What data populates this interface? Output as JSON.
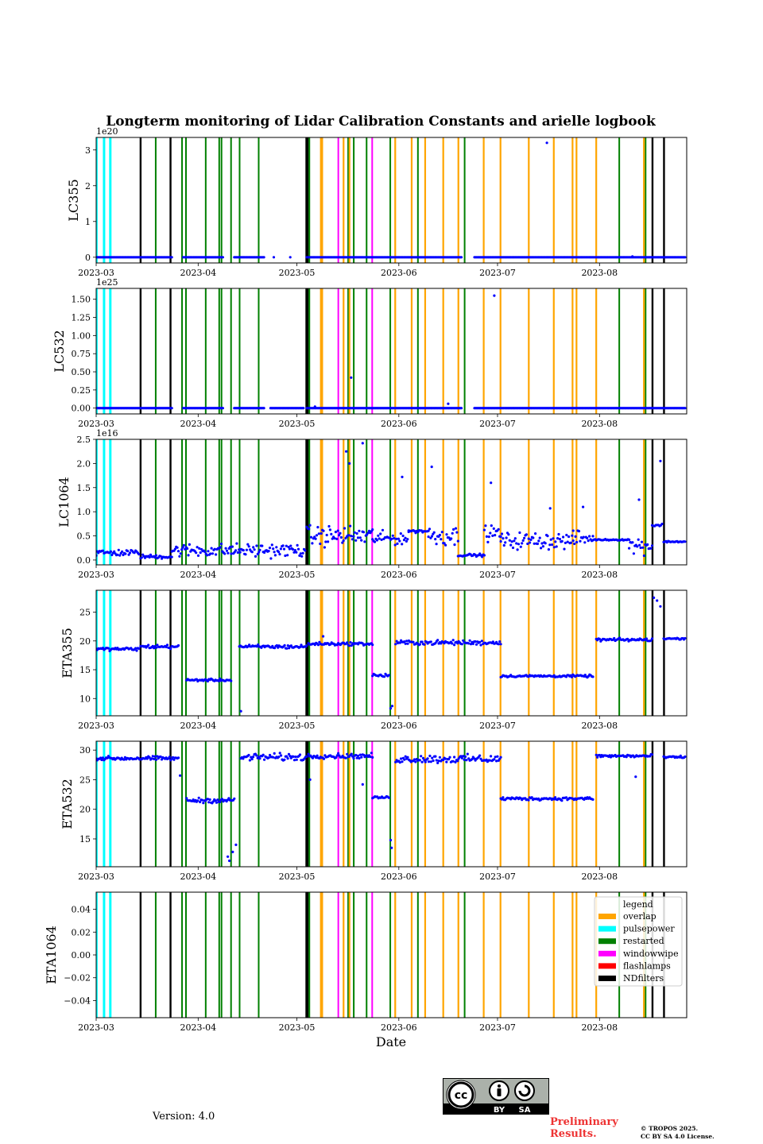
{
  "chart_data": {
    "type": "scatter",
    "title": "Longterm monitoring of Lidar Calibration Constants and arielle logbook",
    "xlabel": "Date",
    "x_range": [
      "2023-03-01",
      "2023-08-28"
    ],
    "x_ticks": [
      "2023-03",
      "2023-04",
      "2023-05",
      "2023-06",
      "2023-07",
      "2023-08"
    ],
    "x_tick_days": [
      0,
      31,
      61,
      92,
      122,
      153
    ],
    "marker_color": "#0000ff",
    "panels": [
      {
        "ylabel": "LC355",
        "offset_text": "1e20",
        "ylim": [
          -0.16,
          3.35
        ],
        "yticks": [
          0,
          1,
          2,
          3
        ],
        "ytick_labels": [
          "0",
          "1",
          "2",
          "3"
        ],
        "segments": [
          {
            "from": 0,
            "to": 23,
            "level": 0.0,
            "noise": 0.0
          },
          {
            "from": 26.5,
            "to": 38.5,
            "level": 0.0,
            "noise": 0.0
          },
          {
            "from": 42,
            "to": 51,
            "level": 0.0,
            "noise": 0.0
          },
          {
            "from": 64,
            "to": 111,
            "level": 0.0,
            "noise": 0.0
          },
          {
            "from": 115,
            "to": 179,
            "level": 0.0,
            "noise": 0.0
          }
        ],
        "outliers": [
          [
            54,
            0.0
          ],
          [
            59,
            0.0
          ],
          [
            137,
            3.2
          ],
          [
            163,
            0.02
          ]
        ]
      },
      {
        "ylabel": "LC532",
        "offset_text": "1e25",
        "ylim": [
          -0.08,
          1.65
        ],
        "yticks": [
          0,
          0.25,
          0.5,
          0.75,
          1.0,
          1.25,
          1.5
        ],
        "ytick_labels": [
          "0.00",
          "0.25",
          "0.50",
          "0.75",
          "1.00",
          "1.25",
          "1.50"
        ],
        "segments": [
          {
            "from": 0,
            "to": 23,
            "level": 0.0,
            "noise": 0.0
          },
          {
            "from": 26.5,
            "to": 38.5,
            "level": 0.0,
            "noise": 0.0
          },
          {
            "from": 42,
            "to": 51,
            "level": 0.0,
            "noise": 0.0
          },
          {
            "from": 53,
            "to": 63,
            "level": 0.0,
            "noise": 0.0
          },
          {
            "from": 64,
            "to": 111,
            "level": 0.0,
            "noise": 0.0
          },
          {
            "from": 115,
            "to": 179,
            "level": 0.0,
            "noise": 0.0
          }
        ],
        "outliers": [
          [
            77.5,
            0.42
          ],
          [
            107,
            0.06
          ],
          [
            121,
            1.55
          ],
          [
            66.5,
            0.02
          ]
        ]
      },
      {
        "ylabel": "LC1064",
        "offset_text": "1e16",
        "ylim": [
          -0.1,
          2.5
        ],
        "yticks": [
          0,
          0.5,
          1.0,
          1.5,
          2.0,
          2.5
        ],
        "ytick_labels": [
          "0.0",
          "0.5",
          "1.0",
          "1.5",
          "2.0",
          "2.5"
        ],
        "segments": [
          {
            "from": 0,
            "to": 13,
            "level": 0.15,
            "noise": 0.1
          },
          {
            "from": 13.5,
            "to": 23,
            "level": 0.07,
            "noise": 0.06
          },
          {
            "from": 23,
            "to": 63.5,
            "level": 0.2,
            "noise": 0.2
          },
          {
            "from": 64,
            "to": 84,
            "level": 0.5,
            "noise": 0.3
          },
          {
            "from": 84,
            "to": 95,
            "level": 0.45,
            "noise": 0.2
          },
          {
            "from": 95,
            "to": 101,
            "level": 0.6,
            "noise": 0.05
          },
          {
            "from": 101,
            "to": 110,
            "level": 0.5,
            "noise": 0.3
          },
          {
            "from": 110,
            "to": 118,
            "level": 0.1,
            "noise": 0.04
          },
          {
            "from": 118,
            "to": 123,
            "level": 0.55,
            "noise": 0.25
          },
          {
            "from": 123,
            "to": 145,
            "level": 0.4,
            "noise": 0.25
          },
          {
            "from": 145,
            "to": 151,
            "level": 0.45,
            "noise": 0.25
          },
          {
            "from": 151,
            "to": 162,
            "level": 0.42,
            "noise": 0.02
          },
          {
            "from": 162,
            "to": 169,
            "level": 0.3,
            "noise": 0.25
          },
          {
            "from": 169,
            "to": 172,
            "level": 0.72,
            "noise": 0.05
          },
          {
            "from": 172.5,
            "to": 179,
            "level": 0.38,
            "noise": 0.02
          }
        ],
        "outliers": [
          [
            76,
            2.25
          ],
          [
            77,
            2.0
          ],
          [
            81,
            2.42
          ],
          [
            93,
            1.72
          ],
          [
            102,
            1.93
          ],
          [
            120,
            1.6
          ],
          [
            171.5,
            2.05
          ],
          [
            165,
            1.25
          ],
          [
            138,
            1.07
          ],
          [
            148,
            1.1
          ]
        ]
      },
      {
        "ylabel": "ETA355",
        "offset_text": "",
        "ylim": [
          7.0,
          28.8
        ],
        "yticks": [
          10,
          15,
          20,
          25
        ],
        "ytick_labels": [
          "10",
          "15",
          "20",
          "25"
        ],
        "segments": [
          {
            "from": 0,
            "to": 13,
            "level": 18.6,
            "noise": 0.4
          },
          {
            "from": 13.5,
            "to": 25,
            "level": 19.0,
            "noise": 0.5
          },
          {
            "from": 27.5,
            "to": 41,
            "level": 13.2,
            "noise": 0.3
          },
          {
            "from": 43.5,
            "to": 64,
            "level": 19.0,
            "noise": 0.5
          },
          {
            "from": 64.5,
            "to": 84,
            "level": 19.5,
            "noise": 0.4
          },
          {
            "from": 84,
            "to": 89,
            "level": 14.0,
            "noise": 0.5
          },
          {
            "from": 91,
            "to": 123,
            "level": 19.7,
            "noise": 0.6
          },
          {
            "from": 123,
            "to": 151,
            "level": 13.9,
            "noise": 0.3
          },
          {
            "from": 152,
            "to": 169,
            "level": 20.2,
            "noise": 0.4
          },
          {
            "from": 172.5,
            "to": 179,
            "level": 20.4,
            "noise": 0.2
          }
        ],
        "outliers": [
          [
            44,
            7.8
          ],
          [
            89.5,
            8.3
          ],
          [
            90,
            8.7
          ],
          [
            69,
            20.8
          ],
          [
            169.5,
            27.5
          ],
          [
            170.5,
            27.0
          ],
          [
            171.5,
            26.0
          ]
        ]
      },
      {
        "ylabel": "ETA532",
        "offset_text": "",
        "ylim": [
          10.3,
          31.5
        ],
        "yticks": [
          15,
          20,
          25,
          30
        ],
        "ytick_labels": [
          "15",
          "20",
          "25",
          "30"
        ],
        "segments": [
          {
            "from": 0,
            "to": 25,
            "level": 28.6,
            "noise": 0.5
          },
          {
            "from": 27.5,
            "to": 42,
            "level": 21.5,
            "noise": 0.6
          },
          {
            "from": 44,
            "to": 64,
            "level": 28.8,
            "noise": 0.9
          },
          {
            "from": 64.5,
            "to": 84,
            "level": 29.0,
            "noise": 0.6
          },
          {
            "from": 84,
            "to": 89,
            "level": 22.0,
            "noise": 0.3
          },
          {
            "from": 91,
            "to": 123,
            "level": 28.5,
            "noise": 1.0
          },
          {
            "from": 123,
            "to": 151,
            "level": 21.8,
            "noise": 0.4
          },
          {
            "from": 152,
            "to": 169,
            "level": 29.0,
            "noise": 0.4
          },
          {
            "from": 172.5,
            "to": 179,
            "level": 28.8,
            "noise": 0.3
          }
        ],
        "outliers": [
          [
            25.5,
            25.7
          ],
          [
            40,
            12.0
          ],
          [
            40.5,
            11.3
          ],
          [
            41.5,
            12.8
          ],
          [
            42.5,
            14.0
          ],
          [
            89.5,
            14.8
          ],
          [
            89.8,
            13.5
          ],
          [
            81,
            24.2
          ],
          [
            65,
            25.0
          ],
          [
            164,
            25.5
          ]
        ]
      },
      {
        "ylabel": "ETA1064",
        "offset_text": "",
        "ylim": [
          -0.055,
          0.055
        ],
        "yticks": [
          -0.04,
          -0.02,
          0.0,
          0.02,
          0.04
        ],
        "ytick_labels": [
          "−0.04",
          "−0.02",
          "0.00",
          "0.02",
          "0.04"
        ],
        "segments": [],
        "outliers": []
      }
    ],
    "events": {
      "pulsepower": [
        0.1,
        2.4,
        4.3
      ],
      "NDfilters": [
        13.5,
        22.6,
        63.9,
        64.3,
        169.1,
        172.6
      ],
      "restarted": [
        18.1,
        26.1,
        27.3,
        33.3,
        37.4,
        38.1,
        41.0,
        43.6,
        49.4,
        64.8,
        76.6,
        78.3,
        82.2,
        89.4,
        97.8,
        112.0,
        159.0,
        167.0
      ],
      "overlap": [
        68.3,
        68.7,
        75.2,
        77.0,
        90.9,
        95.9,
        100.0,
        105.5,
        110.1,
        117.8,
        122.9,
        131.5,
        139.1,
        144.8,
        146.0,
        152.0,
        166.5
      ],
      "windowwipe": [
        73.6,
        83.9
      ],
      "flashlamps": []
    },
    "legend": {
      "title": "legend",
      "placement": "upper-right of last panel",
      "entries": [
        {
          "label": "overlap",
          "color": "#ffa500"
        },
        {
          "label": "pulsepower",
          "color": "#00ffff"
        },
        {
          "label": "restarted",
          "color": "#008000"
        },
        {
          "label": "windowwipe",
          "color": "#ff00ff"
        },
        {
          "label": "flashlamps",
          "color": "#ff0000"
        },
        {
          "label": "NDfilters",
          "color": "#000000"
        }
      ]
    }
  },
  "footer": {
    "version": "Version: 4.0",
    "preliminary_line1": "Preliminary",
    "preliminary_line2": "Results.",
    "copyright_line1": "© TROPOS 2025.",
    "copyright_line2": "CC BY SA 4.0 License.",
    "cc_badge": {
      "by": "BY",
      "sa": "SA",
      "cc": "cc"
    }
  }
}
